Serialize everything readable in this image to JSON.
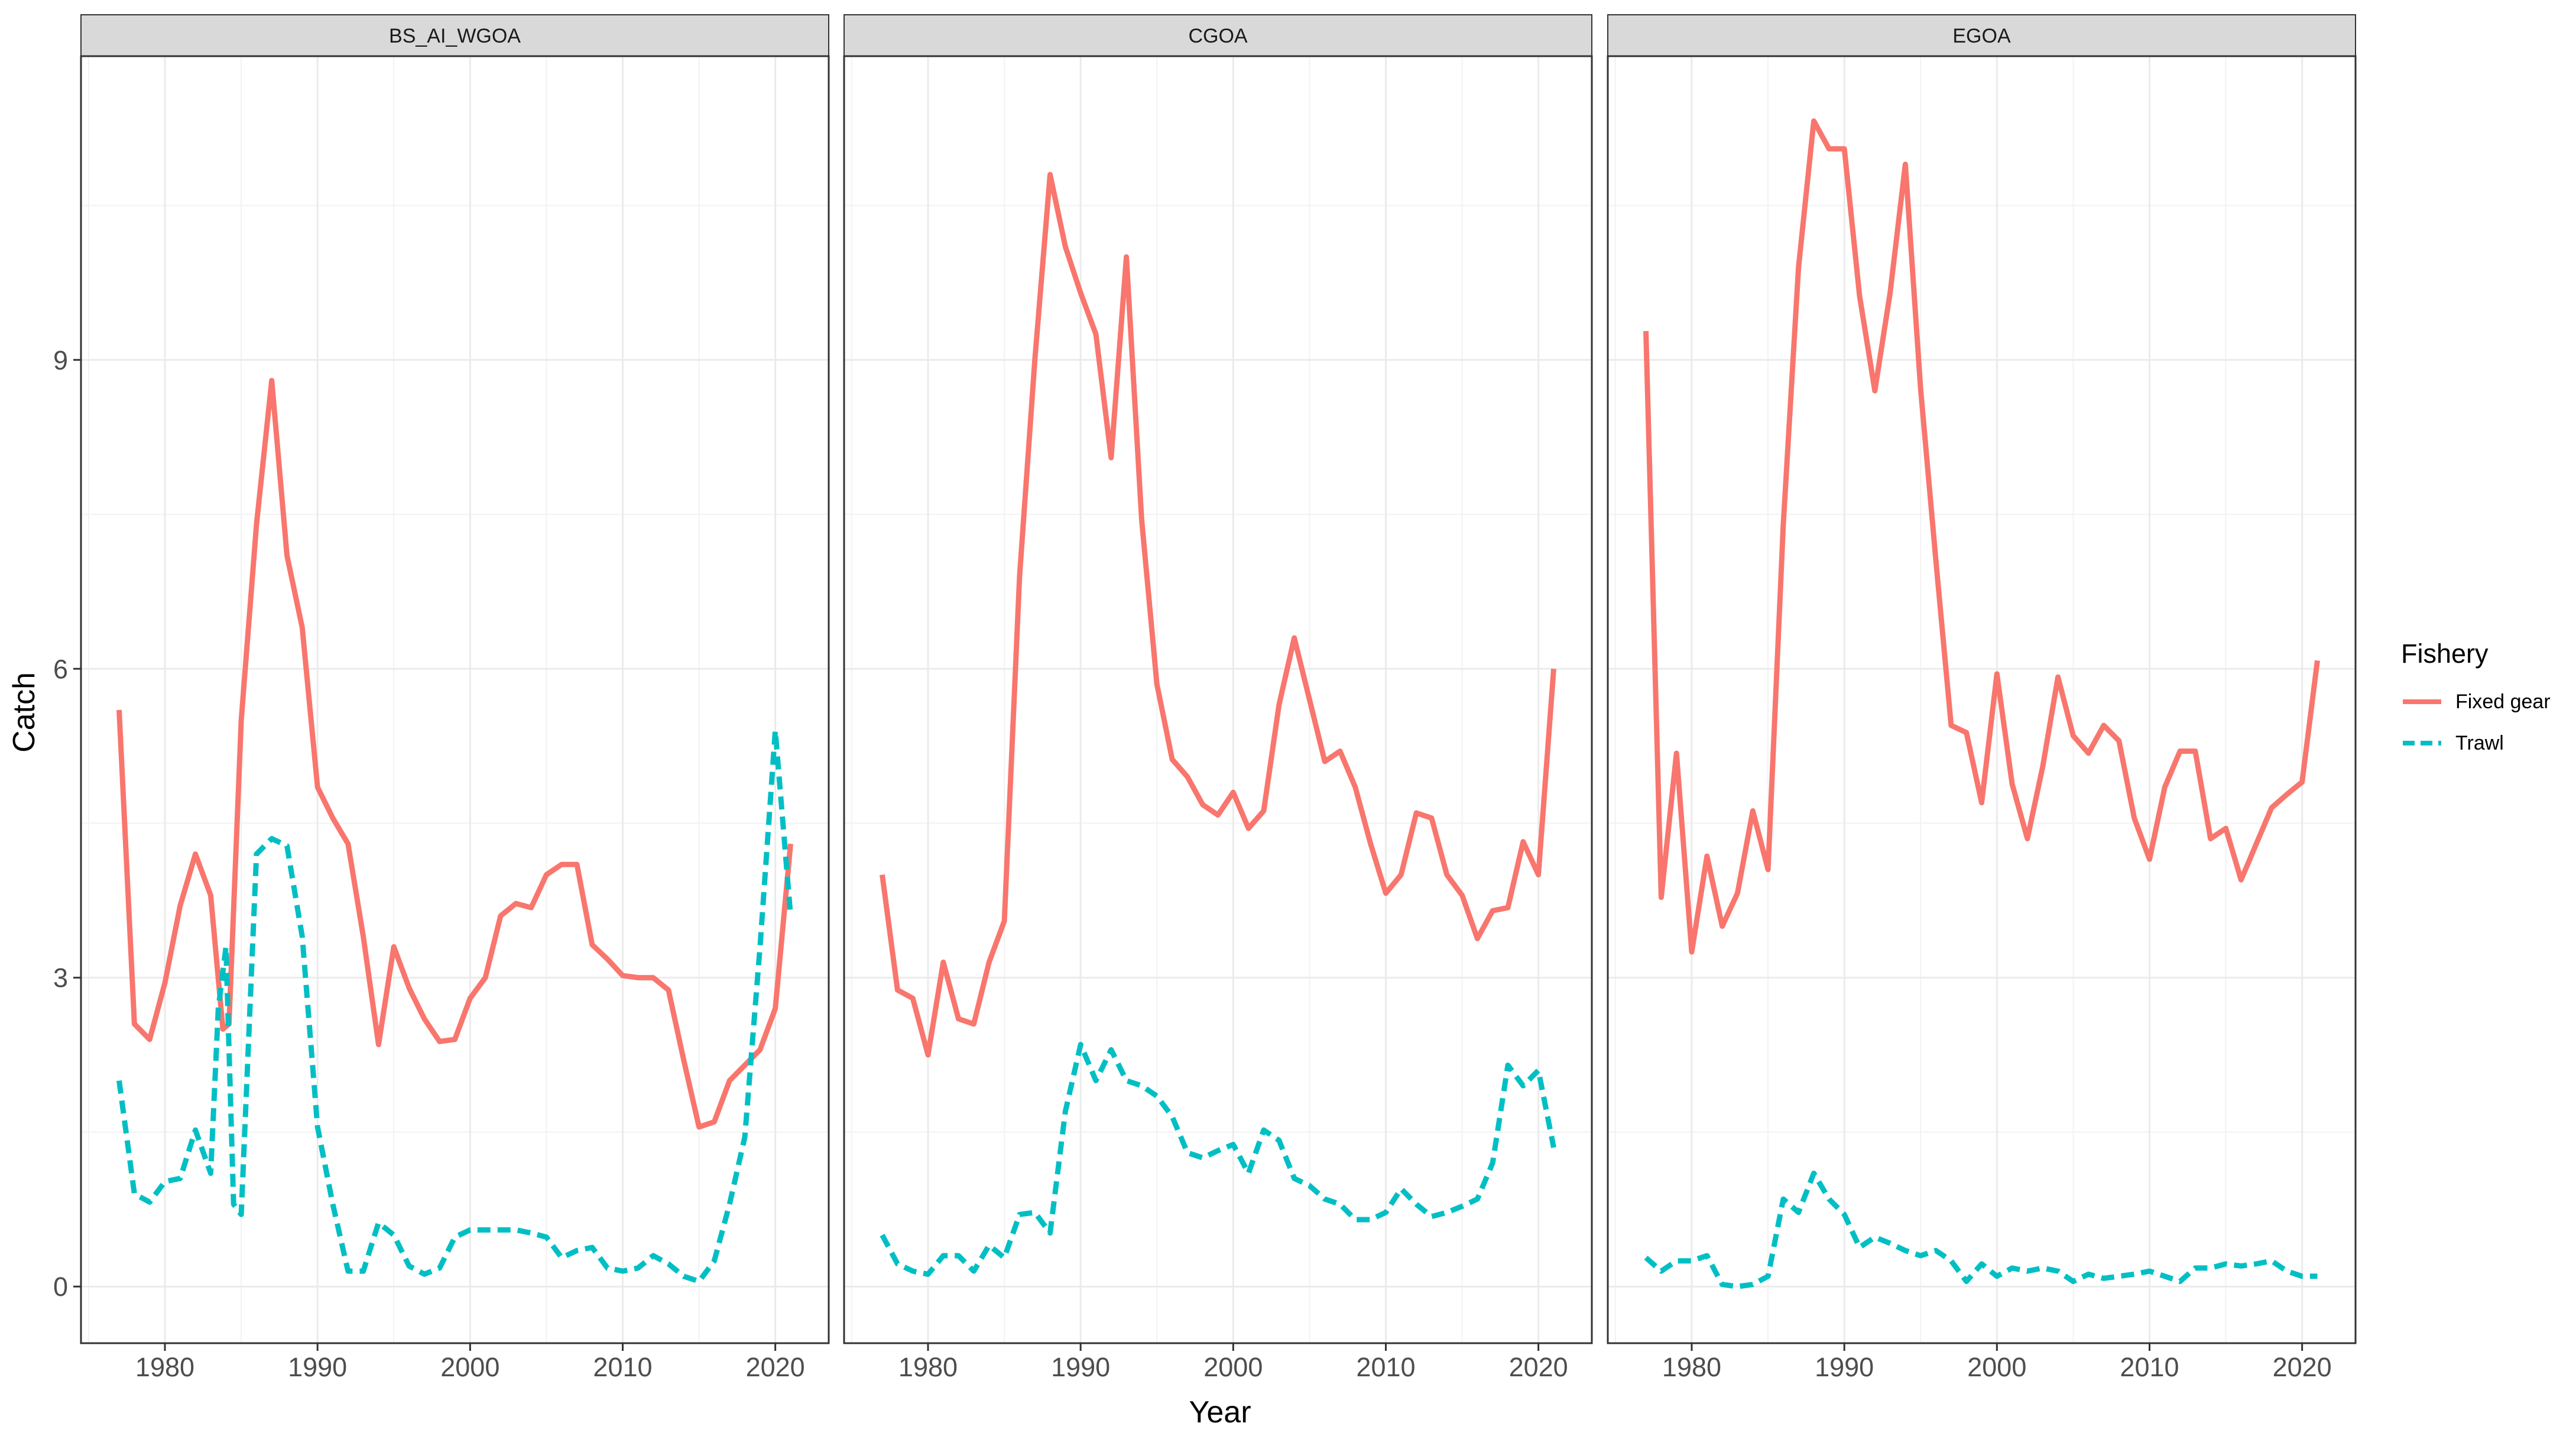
{
  "chart_data": {
    "type": "line",
    "xlabel": "Year",
    "ylabel": "Catch",
    "xlim": [
      1974.5,
      2023.5
    ],
    "ylim": [
      -0.55,
      11.95
    ],
    "x_ticks": [
      1980,
      1990,
      2000,
      2010,
      2020
    ],
    "y_ticks": [
      0,
      3,
      6,
      9
    ],
    "grid": true,
    "legend": {
      "title": "Fishery",
      "position": "right",
      "entries": [
        {
          "name": "Fixed gear",
          "color": "#F8766D",
          "dash": "solid"
        },
        {
          "name": "Trawl",
          "color": "#00BFC4",
          "dash": "dashed"
        }
      ]
    },
    "panels": [
      {
        "title": "BS_AI_WGOA",
        "series": [
          {
            "name": "Fixed gear",
            "x": [
              1977,
              1978,
              1979,
              1980,
              1981,
              1982,
              1983,
              1983.8,
              1984.2,
              1985,
              1986,
              1987,
              1988,
              1989,
              1990,
              1991,
              1992,
              1993,
              1994,
              1995,
              1996,
              1997,
              1998,
              1999,
              2000,
              2001,
              2002,
              2003,
              2004,
              2005,
              2006,
              2007,
              2008,
              2009,
              2010,
              2011,
              2012,
              2013,
              2014,
              2015,
              2016,
              2017,
              2018,
              2019,
              2020,
              2021
            ],
            "y": [
              5.6,
              2.55,
              2.4,
              2.95,
              3.7,
              4.2,
              3.8,
              2.5,
              2.55,
              5.5,
              7.4,
              8.8,
              7.1,
              6.4,
              4.85,
              4.55,
              4.3,
              3.4,
              2.35,
              3.3,
              2.9,
              2.6,
              2.38,
              2.4,
              2.8,
              3.0,
              3.6,
              3.72,
              3.68,
              4.0,
              4.1,
              4.1,
              3.32,
              3.18,
              3.02,
              3.0,
              3.0,
              2.88,
              2.2,
              1.55,
              1.6,
              2.0,
              2.15,
              2.3,
              2.7,
              4.3
            ]
          },
          {
            "name": "Trawl",
            "x": [
              1977,
              1978,
              1979,
              1980,
              1981,
              1982,
              1983,
              1983.5,
              1984,
              1984.5,
              1985,
              1986,
              1987,
              1988,
              1989,
              1990,
              1991,
              1992,
              1993,
              1994,
              1995,
              1996,
              1997,
              1998,
              1999,
              2000,
              2001,
              2002,
              2003,
              2004,
              2005,
              2006,
              2007,
              2008,
              2009,
              2010,
              2011,
              2012,
              2013,
              2014,
              2015,
              2016,
              2017,
              2018,
              2019,
              2020,
              2021
            ],
            "y": [
              2.0,
              0.9,
              0.82,
              1.02,
              1.05,
              1.52,
              1.1,
              2.7,
              3.3,
              0.8,
              0.7,
              4.2,
              4.35,
              4.28,
              3.4,
              1.55,
              0.8,
              0.15,
              0.15,
              0.62,
              0.5,
              0.2,
              0.12,
              0.18,
              0.48,
              0.55,
              0.55,
              0.55,
              0.55,
              0.52,
              0.48,
              0.28,
              0.35,
              0.38,
              0.18,
              0.15,
              0.18,
              0.3,
              0.22,
              0.1,
              0.05,
              0.25,
              0.8,
              1.45,
              3.3,
              5.4,
              3.6
            ]
          }
        ]
      },
      {
        "title": "CGOA",
        "series": [
          {
            "name": "Fixed gear",
            "x": [
              1977,
              1978,
              1979,
              1980,
              1981,
              1982,
              1983,
              1984,
              1985,
              1986,
              1987,
              1988,
              1989,
              1990,
              1991,
              1992,
              1993,
              1994,
              1995,
              1996,
              1997,
              1998,
              1999,
              2000,
              2001,
              2002,
              2003,
              2004,
              2005,
              2006,
              2007,
              2008,
              2009,
              2010,
              2011,
              2012,
              2013,
              2014,
              2015,
              2016,
              2017,
              2018,
              2019,
              2020,
              2021
            ],
            "y": [
              4.0,
              2.88,
              2.8,
              2.25,
              3.15,
              2.6,
              2.55,
              3.15,
              3.55,
              6.9,
              9.0,
              10.8,
              10.1,
              9.65,
              9.25,
              8.05,
              10.0,
              7.45,
              5.85,
              5.12,
              4.95,
              4.68,
              4.58,
              4.8,
              4.45,
              4.62,
              5.65,
              6.3,
              5.7,
              5.1,
              5.2,
              4.85,
              4.3,
              3.82,
              4.0,
              4.6,
              4.55,
              4.0,
              3.8,
              3.38,
              3.65,
              3.68,
              4.32,
              4.0,
              6.0
            ]
          },
          {
            "name": "Trawl",
            "x": [
              1977,
              1978,
              1979,
              1980,
              1981,
              1982,
              1983,
              1984,
              1985,
              1986,
              1987,
              1988,
              1989,
              1990,
              1991,
              1992,
              1993,
              1994,
              1995,
              1996,
              1997,
              1998,
              1999,
              2000,
              2001,
              2002,
              2003,
              2004,
              2005,
              2006,
              2007,
              2008,
              2009,
              2010,
              2011,
              2012,
              2013,
              2014,
              2015,
              2016,
              2017,
              2018,
              2019,
              2020,
              2021
            ],
            "y": [
              0.5,
              0.22,
              0.15,
              0.12,
              0.3,
              0.3,
              0.15,
              0.4,
              0.28,
              0.7,
              0.72,
              0.52,
              1.7,
              2.35,
              2.0,
              2.3,
              2.0,
              1.95,
              1.85,
              1.65,
              1.3,
              1.25,
              1.32,
              1.38,
              1.1,
              1.52,
              1.42,
              1.05,
              0.98,
              0.85,
              0.8,
              0.65,
              0.65,
              0.72,
              0.95,
              0.8,
              0.68,
              0.72,
              0.78,
              0.85,
              1.2,
              2.15,
              1.95,
              2.1,
              1.35
            ]
          }
        ]
      },
      {
        "title": "EGOA",
        "series": [
          {
            "name": "Fixed gear",
            "x": [
              1977,
              1978,
              1979,
              1980,
              1981,
              1982,
              1983,
              1984,
              1985,
              1986,
              1987,
              1988,
              1989,
              1990,
              1991,
              1992,
              1993,
              1994,
              1995,
              1996,
              1997,
              1998,
              1999,
              2000,
              2001,
              2002,
              2003,
              2004,
              2005,
              2006,
              2007,
              2008,
              2009,
              2010,
              2011,
              2012,
              2013,
              2014,
              2015,
              2016,
              2017,
              2018,
              2019,
              2020,
              2021
            ],
            "y": [
              9.28,
              3.78,
              5.18,
              3.25,
              4.18,
              3.5,
              3.82,
              4.62,
              4.05,
              7.4,
              9.9,
              11.32,
              11.05,
              11.05,
              9.62,
              8.7,
              9.65,
              10.9,
              8.72,
              7.05,
              5.45,
              5.38,
              4.7,
              5.95,
              4.88,
              4.35,
              5.05,
              5.92,
              5.35,
              5.18,
              5.45,
              5.3,
              4.55,
              4.15,
              4.85,
              5.2,
              5.2,
              4.35,
              4.45,
              3.95,
              4.3,
              4.65,
              4.78,
              4.9,
              6.08
            ]
          },
          {
            "name": "Trawl",
            "x": [
              1977,
              1978,
              1979,
              1980,
              1981,
              1982,
              1983,
              1984,
              1985,
              1986,
              1987,
              1988,
              1989,
              1990,
              1991,
              1992,
              1993,
              1994,
              1995,
              1996,
              1997,
              1998,
              1999,
              2000,
              2001,
              2002,
              2003,
              2004,
              2005,
              2006,
              2007,
              2008,
              2009,
              2010,
              2011,
              2012,
              2013,
              2014,
              2015,
              2016,
              2017,
              2018,
              2019,
              2020,
              2021
            ],
            "y": [
              0.28,
              0.15,
              0.25,
              0.25,
              0.3,
              0.02,
              0.0,
              0.02,
              0.1,
              0.85,
              0.72,
              1.1,
              0.85,
              0.7,
              0.38,
              0.48,
              0.42,
              0.35,
              0.3,
              0.35,
              0.25,
              0.05,
              0.22,
              0.1,
              0.18,
              0.15,
              0.18,
              0.15,
              0.05,
              0.12,
              0.08,
              0.1,
              0.12,
              0.15,
              0.1,
              0.05,
              0.18,
              0.18,
              0.22,
              0.2,
              0.22,
              0.25,
              0.15,
              0.1,
              0.1
            ]
          }
        ]
      }
    ]
  }
}
